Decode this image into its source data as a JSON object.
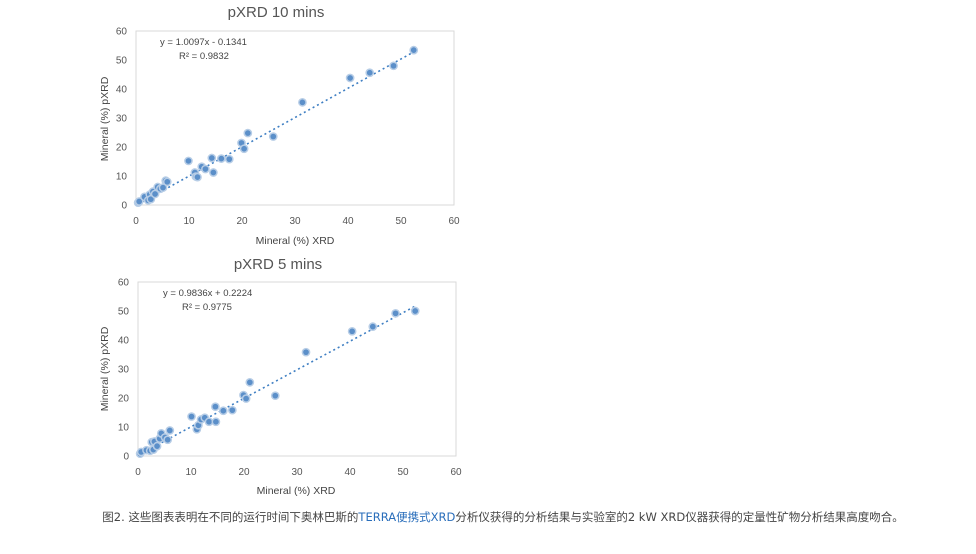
{
  "caption": {
    "prefix": "图2. 这些图表表明在不同的运行时间下奥林巴斯的",
    "link": "TERRA便携式XRD",
    "suffix": "分析仪获得的分析结果与实验室的2 kW XRD仪器获得的定量性矿物分析结果高度吻合。",
    "link_color": "#2a6ebb"
  },
  "chart_data": [
    {
      "type": "scatter",
      "title": "pXRD 10 mins",
      "xlabel": "Mineral (%) XRD",
      "ylabel": "Mineral (%) pXRD",
      "xlim": [
        0,
        60
      ],
      "ylim": [
        0,
        60
      ],
      "xticks": [
        "0",
        "10",
        "20",
        "30",
        "40",
        "50",
        "60"
      ],
      "yticks": [
        "0",
        "10",
        "20",
        "30",
        "40",
        "50",
        "60"
      ],
      "equation": "y = 1.0097x - 0.1341",
      "r2": "R² = 0.9832",
      "trendline": {
        "slope": 1.0097,
        "intercept": -0.1341,
        "x_range": [
          0.3,
          52.3
        ],
        "style": "dotted"
      },
      "marker_color": "#5b8fc9",
      "grid": false,
      "x": [
        0.4,
        0.6,
        1.6,
        2.3,
        2.6,
        2.8,
        3.2,
        3.6,
        4.1,
        4.6,
        5.1,
        5.6,
        5.9,
        9.9,
        11.1,
        11.3,
        11.6,
        12.4,
        13.1,
        14.3,
        14.6,
        16.1,
        17.6,
        19.9,
        20.4,
        21.1,
        25.9,
        31.4,
        40.4,
        44.1,
        48.6,
        52.4
      ],
      "y": [
        0.8,
        1.2,
        2.8,
        1.6,
        3.6,
        2.0,
        4.6,
        3.8,
        6.2,
        5.6,
        6.0,
        8.4,
        8.0,
        15.2,
        11.2,
        9.8,
        9.6,
        13.2,
        12.4,
        16.2,
        11.2,
        16.0,
        15.8,
        21.4,
        19.4,
        24.8,
        23.6,
        35.4,
        43.8,
        45.6,
        48.0,
        53.4
      ]
    },
    {
      "type": "scatter",
      "title": "pXRD 5 mins",
      "xlabel": "Mineral (%) XRD",
      "ylabel": "Mineral (%) pXRD",
      "xlim": [
        0,
        60
      ],
      "ylim": [
        0,
        60
      ],
      "xticks": [
        "0",
        "10",
        "20",
        "30",
        "40",
        "50",
        "60"
      ],
      "yticks": [
        "0",
        "10",
        "20",
        "30",
        "40",
        "50",
        "60"
      ],
      "equation": "y = 0.9836x + 0.2224",
      "r2": "R² = 0.9775",
      "trendline": {
        "slope": 0.9836,
        "intercept": 0.2224,
        "x_range": [
          0.3,
          52.3
        ],
        "style": "dotted"
      },
      "marker_color": "#5b8fc9",
      "grid": false,
      "x": [
        0.4,
        0.6,
        1.6,
        2.3,
        2.6,
        2.9,
        3.1,
        3.6,
        4.1,
        4.4,
        5.1,
        5.6,
        6.0,
        10.1,
        11.1,
        11.4,
        11.9,
        12.6,
        13.4,
        14.6,
        14.7,
        16.1,
        17.8,
        19.9,
        20.4,
        21.1,
        25.9,
        31.7,
        40.4,
        44.3,
        48.6,
        52.3
      ],
      "y": [
        0.8,
        1.4,
        2.0,
        1.8,
        4.8,
        2.2,
        5.0,
        3.4,
        6.0,
        7.8,
        6.4,
        5.6,
        8.8,
        13.6,
        9.2,
        10.6,
        12.6,
        13.2,
        11.8,
        17.0,
        11.8,
        15.6,
        15.8,
        21.0,
        19.8,
        25.4,
        20.8,
        35.8,
        43.0,
        44.6,
        49.2,
        50.0
      ]
    }
  ]
}
